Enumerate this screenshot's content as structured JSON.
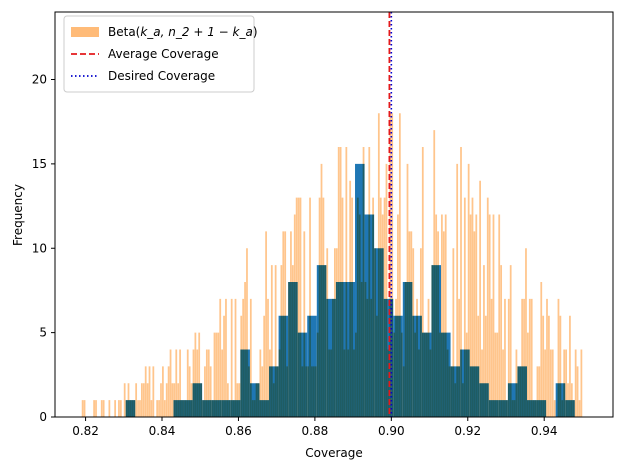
{
  "chart_data": {
    "type": "bar",
    "xlabel": "Coverage",
    "ylabel": "Frequency",
    "xlim": [
      0.812,
      0.958
    ],
    "ylim": [
      0,
      24
    ],
    "grid": false,
    "legend_position": "top-left",
    "x_ticks": [
      "0.82",
      "0.84",
      "0.86",
      "0.88",
      "0.90",
      "0.92",
      "0.94"
    ],
    "x_tick_values": [
      0.82,
      0.84,
      0.86,
      0.88,
      0.9,
      0.92,
      0.94
    ],
    "y_ticks": [
      "0",
      "5",
      "10",
      "15",
      "20"
    ],
    "y_tick_values": [
      0,
      5,
      10,
      15,
      20
    ],
    "empirical_histogram": {
      "color": "#1f77b4",
      "bin_left_edges": [
        0.8305,
        0.833,
        0.8355,
        0.838,
        0.8405,
        0.843,
        0.8455,
        0.848,
        0.8505,
        0.853,
        0.8555,
        0.858,
        0.8605,
        0.863,
        0.8655,
        0.868,
        0.8705,
        0.873,
        0.8755,
        0.878,
        0.8805,
        0.883,
        0.8855,
        0.888,
        0.8905,
        0.893,
        0.8955,
        0.898,
        0.9005,
        0.903,
        0.9055,
        0.908,
        0.9105,
        0.913,
        0.9155,
        0.918,
        0.9205,
        0.923,
        0.9255,
        0.928,
        0.9305,
        0.933,
        0.9355,
        0.938,
        0.9405,
        0.943,
        0.9455,
        0.948
      ],
      "bin_width": 0.0025,
      "values": [
        1,
        0,
        0,
        0,
        0,
        1,
        1,
        2,
        1,
        1,
        1,
        1,
        4,
        2,
        1,
        3,
        6,
        8,
        5,
        6,
        9,
        7,
        8,
        8,
        15,
        12,
        10,
        7,
        6,
        8,
        6,
        5,
        9,
        5,
        3,
        4,
        3,
        2,
        1,
        1,
        2,
        3,
        1,
        1,
        0,
        2,
        1,
        0
      ]
    },
    "beta_histogram": {
      "color": "#ffbb78",
      "opacity": 0.85,
      "x_start": 0.818,
      "x_end": 0.95,
      "bar_count": 264,
      "seed": 7
    },
    "reference_lines": [
      {
        "name": "Average Coverage",
        "x": 0.8995,
        "color": "#e41a1c",
        "style": "dashed"
      },
      {
        "name": "Desired Coverage",
        "x": 0.9,
        "color": "#0000cc",
        "style": "dotted"
      }
    ],
    "legend": [
      {
        "label_prefix": "Beta(",
        "label_math": "k_a, n_2 + 1 − k_a",
        "label_suffix": ")",
        "kind": "patch",
        "color": "#ffbb78"
      },
      {
        "label": "Average Coverage",
        "kind": "dashed-line",
        "color": "#e41a1c"
      },
      {
        "label": "Desired Coverage",
        "kind": "dotted-line",
        "color": "#0000cc"
      }
    ]
  }
}
